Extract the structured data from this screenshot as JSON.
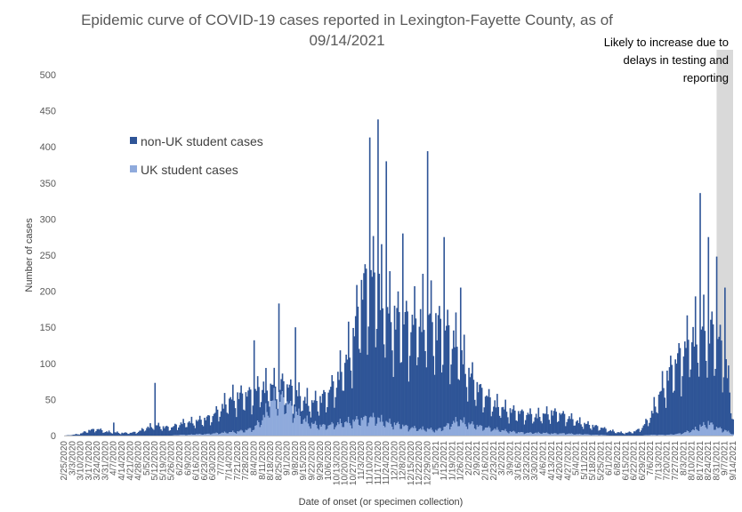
{
  "chart_data": {
    "type": "bar",
    "stacked": true,
    "title_line1": "Epidemic curve of COVID-19 cases reported in Lexington-Fayette County, as of",
    "title_line2": "09/14/2021",
    "xlabel": "Date of onset (or specimen collection)",
    "ylabel": "Number of cases",
    "ylim": [
      0,
      500
    ],
    "yticks": [
      "0",
      "50",
      "100",
      "150",
      "200",
      "250",
      "300",
      "350",
      "400",
      "450",
      "500"
    ],
    "grid": false,
    "legend_position": "top-left",
    "x_start": "2/25/2020",
    "x_end": "9/14/2021",
    "x_tick_labels": [
      "2/25/2020",
      "3/3/2020",
      "3/10/2020",
      "3/17/2020",
      "3/24/2020",
      "3/31/2020",
      "4/7/2020",
      "4/14/2020",
      "4/21/2020",
      "4/28/2020",
      "5/5/2020",
      "5/12/2020",
      "5/19/2020",
      "5/26/2020",
      "6/2/2020",
      "6/9/2020",
      "6/16/2020",
      "6/23/2020",
      "6/30/2020",
      "7/7/2020",
      "7/14/2020",
      "7/21/2020",
      "7/28/2020",
      "8/4/2020",
      "8/11/2020",
      "8/18/2020",
      "8/25/2020",
      "9/1/2020",
      "9/8/2020",
      "9/15/2020",
      "9/22/2020",
      "9/29/2020",
      "10/6/2020",
      "10/13/2020",
      "10/20/2020",
      "10/27/2020",
      "11/3/2020",
      "11/10/2020",
      "11/17/2020",
      "11/24/2020",
      "12/1/2020",
      "12/8/2020",
      "12/15/2020",
      "12/22/2020",
      "12/29/2020",
      "1/5/2021",
      "1/12/2021",
      "1/19/2021",
      "1/26/2021",
      "2/2/2021",
      "2/9/2021",
      "2/16/2021",
      "2/23/2021",
      "3/2/2021",
      "3/9/2021",
      "3/16/2021",
      "3/23/2021",
      "3/30/2021",
      "4/6/2021",
      "4/13/2021",
      "4/20/2021",
      "4/27/2021",
      "5/4/2021",
      "5/11/2021",
      "5/18/2021",
      "5/25/2021",
      "6/1/2021",
      "6/8/2021",
      "6/15/2021",
      "6/22/2021",
      "6/29/2021",
      "7/6/2021",
      "7/13/2021",
      "7/20/2021",
      "7/27/2021",
      "8/3/2021",
      "8/10/2021",
      "8/17/2021",
      "8/24/2021",
      "8/31/2021",
      "9/7/2021",
      "9/14/2021"
    ],
    "weekly_curve": {
      "week_start": [
        "2/25/2020",
        "3/3/2020",
        "3/10/2020",
        "3/17/2020",
        "3/24/2020",
        "3/31/2020",
        "4/7/2020",
        "4/14/2020",
        "4/21/2020",
        "4/28/2020",
        "5/5/2020",
        "5/12/2020",
        "5/19/2020",
        "5/26/2020",
        "6/2/2020",
        "6/9/2020",
        "6/16/2020",
        "6/23/2020",
        "6/30/2020",
        "7/7/2020",
        "7/14/2020",
        "7/21/2020",
        "7/28/2020",
        "8/4/2020",
        "8/11/2020",
        "8/18/2020",
        "8/25/2020",
        "9/1/2020",
        "9/8/2020",
        "9/15/2020",
        "9/22/2020",
        "9/29/2020",
        "10/6/2020",
        "10/13/2020",
        "10/20/2020",
        "10/27/2020",
        "11/3/2020",
        "11/10/2020",
        "11/17/2020",
        "11/24/2020",
        "12/1/2020",
        "12/8/2020",
        "12/15/2020",
        "12/22/2020",
        "12/29/2020",
        "1/5/2021",
        "1/12/2021",
        "1/19/2021",
        "1/26/2021",
        "2/2/2021",
        "2/9/2021",
        "2/16/2021",
        "2/23/2021",
        "3/2/2021",
        "3/9/2021",
        "3/16/2021",
        "3/23/2021",
        "3/30/2021",
        "4/6/2021",
        "4/13/2021",
        "4/20/2021",
        "4/27/2021",
        "5/4/2021",
        "5/11/2021",
        "5/18/2021",
        "5/25/2021",
        "6/1/2021",
        "6/8/2021",
        "6/15/2021",
        "6/22/2021",
        "6/29/2021",
        "7/6/2021",
        "7/13/2021",
        "7/20/2021",
        "7/27/2021",
        "8/3/2021",
        "8/10/2021",
        "8/17/2021",
        "8/24/2021",
        "8/31/2021",
        "9/7/2021",
        "9/14/2021"
      ],
      "total": [
        0,
        1,
        3,
        8,
        10,
        6,
        5,
        4,
        4,
        6,
        12,
        16,
        13,
        12,
        18,
        20,
        22,
        25,
        30,
        42,
        55,
        60,
        62,
        65,
        75,
        75,
        80,
        75,
        65,
        55,
        50,
        55,
        65,
        85,
        110,
        150,
        220,
        240,
        230,
        190,
        180,
        175,
        170,
        175,
        185,
        170,
        160,
        150,
        125,
        95,
        75,
        60,
        50,
        42,
        38,
        35,
        33,
        30,
        32,
        35,
        33,
        28,
        22,
        18,
        15,
        12,
        8,
        5,
        4,
        6,
        12,
        30,
        60,
        90,
        110,
        130,
        150,
        160,
        165,
        150,
        120,
        25
      ],
      "uk_student": [
        0,
        0,
        0,
        0,
        0,
        0,
        0,
        0,
        0,
        0,
        0,
        0,
        0,
        0,
        1,
        1,
        2,
        2,
        3,
        4,
        5,
        6,
        8,
        12,
        25,
        50,
        60,
        50,
        35,
        25,
        18,
        15,
        15,
        18,
        20,
        22,
        25,
        28,
        25,
        20,
        18,
        15,
        12,
        10,
        10,
        8,
        12,
        20,
        22,
        18,
        15,
        12,
        10,
        8,
        6,
        5,
        4,
        4,
        4,
        3,
        3,
        3,
        2,
        2,
        1,
        1,
        0,
        0,
        0,
        0,
        0,
        1,
        1,
        1,
        2,
        4,
        8,
        12,
        20,
        12,
        8,
        2
      ]
    },
    "spikes": [
      {
        "date": "4/7/2020",
        "total": 18,
        "uk_student": 0
      },
      {
        "date": "5/12/2020",
        "total": 73,
        "uk_student": 0
      },
      {
        "date": "8/4/2020",
        "total": 132,
        "uk_student": 8
      },
      {
        "date": "8/25/2020",
        "total": 183,
        "uk_student": 60
      },
      {
        "date": "9/8/2020",
        "total": 150,
        "uk_student": 40
      },
      {
        "date": "11/10/2020",
        "total": 413,
        "uk_student": 25
      },
      {
        "date": "11/17/2020",
        "total": 438,
        "uk_student": 25
      },
      {
        "date": "11/24/2020",
        "total": 380,
        "uk_student": 20
      },
      {
        "date": "12/8/2020",
        "total": 280,
        "uk_student": 15
      },
      {
        "date": "12/29/2020",
        "total": 394,
        "uk_student": 10
      },
      {
        "date": "1/12/2021",
        "total": 275,
        "uk_student": 12
      },
      {
        "date": "1/26/2021",
        "total": 205,
        "uk_student": 22
      },
      {
        "date": "8/17/2021",
        "total": 336,
        "uk_student": 15
      },
      {
        "date": "8/24/2021",
        "total": 275,
        "uk_student": 20
      },
      {
        "date": "8/31/2021",
        "total": 248,
        "uk_student": 12
      },
      {
        "date": "9/7/2021",
        "total": 205,
        "uk_student": 8
      }
    ],
    "series": [
      {
        "name": "non-UK student cases",
        "color": "#2F5597"
      },
      {
        "name": "UK student cases",
        "color": "#8FAADC"
      }
    ],
    "annotation": {
      "text_lines": [
        "Likely to increase due to",
        "delays in testing and",
        "reporting"
      ],
      "shade_start": "8/31/2021",
      "shade_end": "9/14/2021",
      "shade_color": "#D9D9D9"
    }
  }
}
